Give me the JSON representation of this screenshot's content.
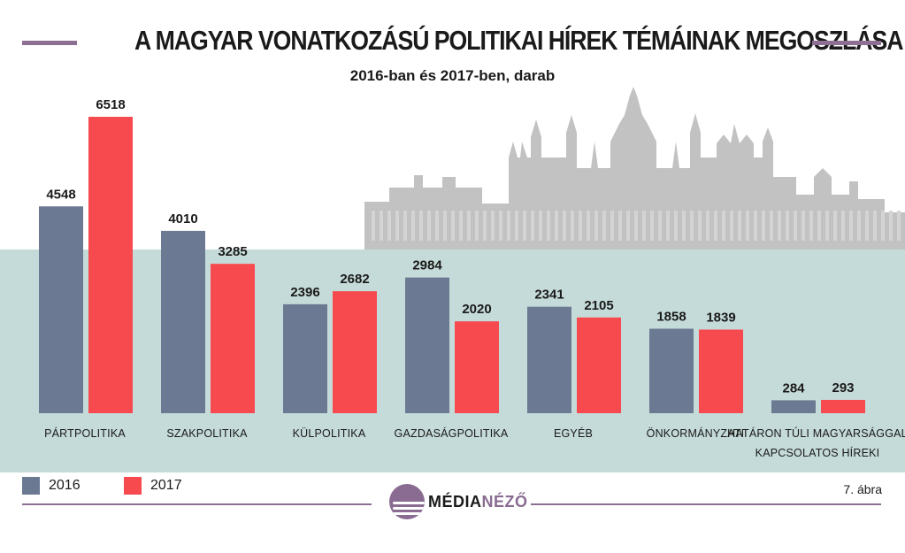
{
  "header": {
    "title": "A MAGYAR VONATKOZÁSÚ POLITIKAI HÍREK TÉMÁINAK MEGOSZLÁSA",
    "subtitle": "2016-ban és 2017-ben, darab"
  },
  "chart_data": {
    "type": "bar",
    "title": "A MAGYAR VONATKOZÁSÚ POLITIKAI HÍREK TÉMÁINAK MEGOSZLÁSA",
    "subtitle": "2016-ban és 2017-ben, darab",
    "categories": [
      [
        "PÁRTPOLITIKA"
      ],
      [
        "SZAKPOLITIKA"
      ],
      [
        "KÜLPOLITIKA"
      ],
      [
        "GAZDASÁGPOLITIKA"
      ],
      [
        "EGYÉB"
      ],
      [
        "ÖNKORMÁNYZATI"
      ],
      [
        "HATÁRON TÚLI MAGYARSÁGGAL",
        "KAPCSOLATOS HÍREKI"
      ]
    ],
    "series": [
      {
        "name": "2016",
        "color": "#6b7a92",
        "values": [
          4548,
          4010,
          2396,
          2984,
          2341,
          1858,
          284
        ]
      },
      {
        "name": "2017",
        "color": "#f64a4f",
        "values": [
          6518,
          3285,
          2682,
          2020,
          2105,
          1839,
          293
        ]
      }
    ],
    "ylim": [
      0,
      6518
    ],
    "grid": false,
    "legend": "bottom-left",
    "data_labels": true
  },
  "legend": {
    "items": [
      {
        "label": "2016",
        "color": "#6b7a92"
      },
      {
        "label": "2017",
        "color": "#f64a4f"
      }
    ]
  },
  "footer": {
    "figure_ref": "7. ábra",
    "brand_main": "MÉDIA",
    "brand_accent": "NÉZŐ"
  },
  "colors": {
    "band": "#c5dbd9",
    "silhouette": "#c2c2c2",
    "accent_line": "#8e6f94"
  },
  "icons": {
    "background": "parliament-silhouette-icon",
    "logo": "medianezo-logo-icon"
  }
}
